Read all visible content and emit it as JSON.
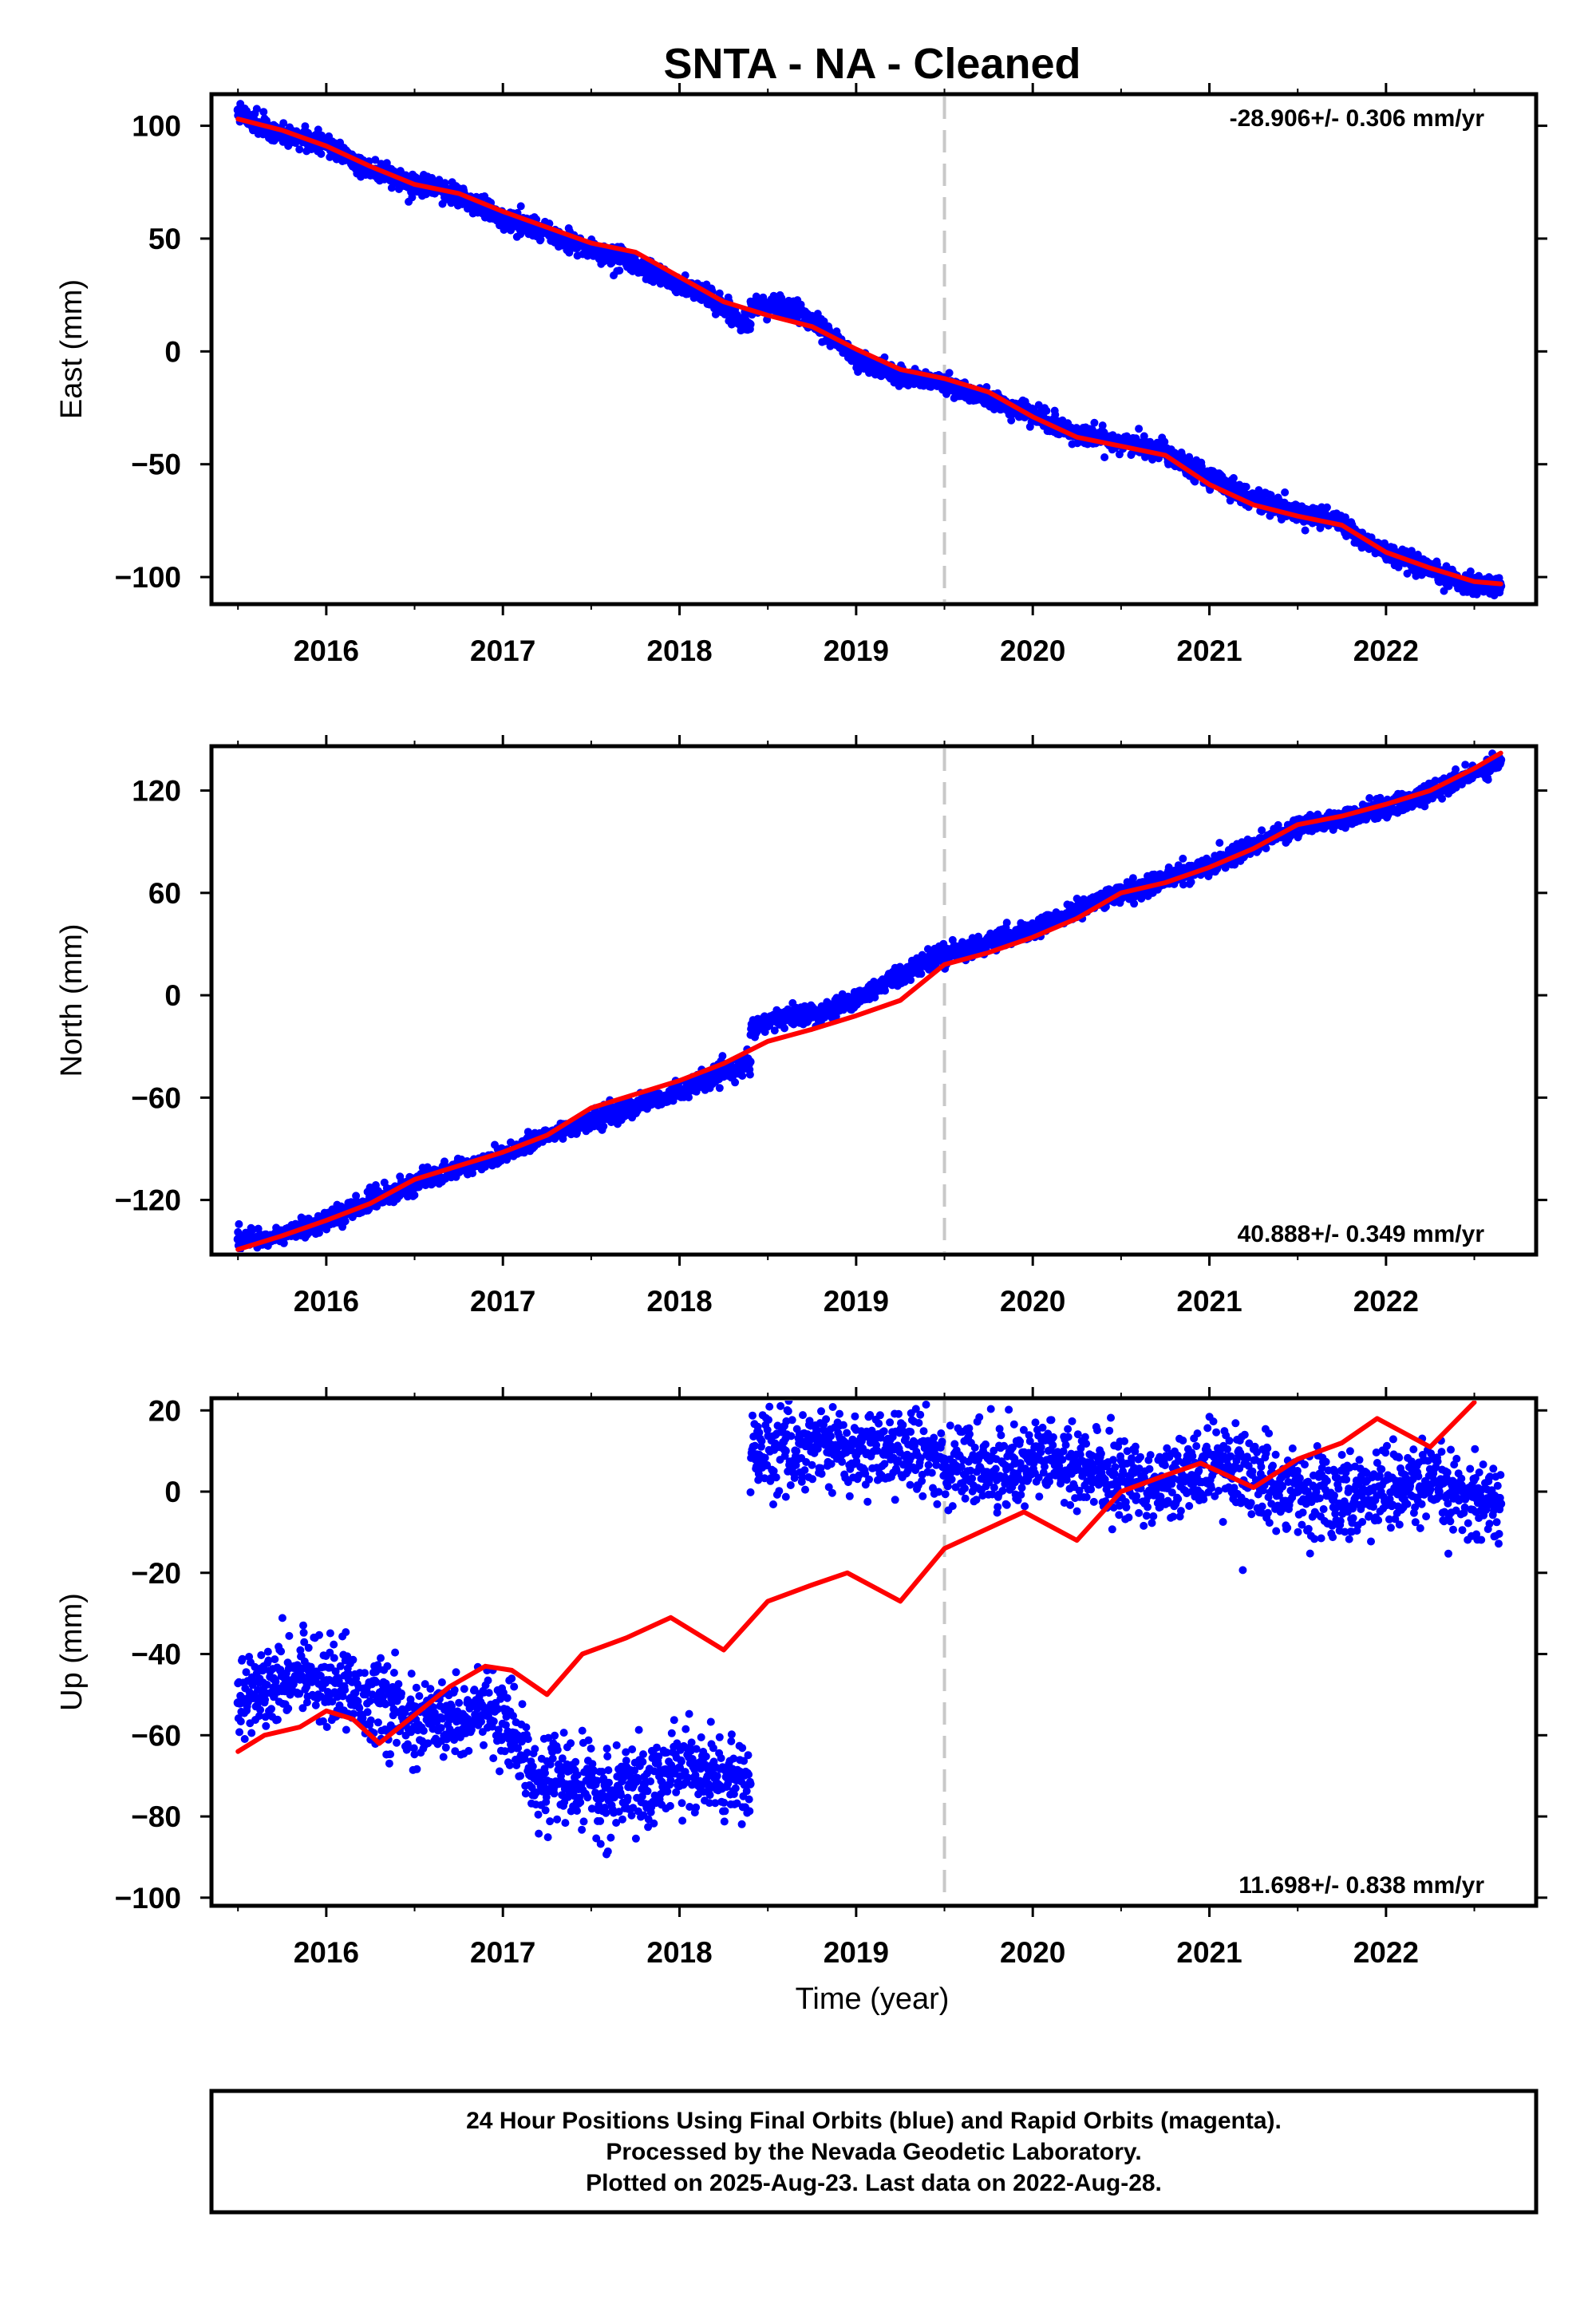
{
  "title": "SNTA  - NA - Cleaned",
  "x_axis_title": "Time (year)",
  "caption": [
    "24 Hour Positions Using Final Orbits (blue) and Rapid Orbits (magenta).",
    "Processed by the Nevada Geodetic Laboratory.",
    "Plotted on 2025-Aug-23. Last data on 2022-Aug-28."
  ],
  "colors": {
    "data_points": "#0000ff",
    "model_curve": "#ff0000",
    "event_line": "#c8c8c8"
  },
  "chart_data": [
    {
      "type": "scatter",
      "ylabel": "East (mm)",
      "rate_label": "-28.906+/- 0.306 mm/yr",
      "rate_position": "top-right",
      "xlim": [
        2015.35,
        2022.85
      ],
      "ylim": [
        -112,
        114
      ],
      "xticks": [
        2016,
        2017,
        2018,
        2019,
        2020,
        2021,
        2022
      ],
      "yticks": [
        100,
        50,
        0,
        -50,
        -100
      ],
      "event_line_x": 2019.5,
      "grid": false,
      "series": [
        {
          "kind": "points",
          "x": [
            2015.5,
            2015.6,
            2015.75,
            2016.0,
            2016.25,
            2016.5,
            2016.65,
            2016.8,
            2017.0,
            2017.25,
            2017.5,
            2017.7,
            2017.9,
            2018.15,
            2018.3,
            2018.4,
            2018.45,
            2018.6,
            2018.8,
            2019.0,
            2019.25,
            2019.5,
            2019.75,
            2020.0,
            2020.25,
            2020.5,
            2020.75,
            2021.0,
            2021.25,
            2021.5,
            2021.7,
            2021.9,
            2022.1,
            2022.3,
            2022.5,
            2022.65
          ],
          "y": [
            107,
            101,
            96,
            92,
            80,
            74,
            72,
            67,
            59,
            53,
            45,
            40,
            33,
            25,
            17,
            12,
            20,
            20,
            12,
            -4,
            -11,
            -14,
            -22,
            -28,
            -37,
            -40,
            -44,
            -56,
            -65,
            -72,
            -74,
            -85,
            -93,
            -99,
            -103,
            -104
          ]
        },
        {
          "kind": "model",
          "x": [
            2015.5,
            2015.75,
            2016.0,
            2016.25,
            2016.5,
            2016.75,
            2017.0,
            2017.25,
            2017.5,
            2017.75,
            2018.0,
            2018.25,
            2018.5,
            2018.75,
            2019.0,
            2019.25,
            2019.5,
            2019.75,
            2020.0,
            2020.25,
            2020.5,
            2020.75,
            2021.0,
            2021.25,
            2021.5,
            2021.75,
            2022.0,
            2022.25,
            2022.5,
            2022.65
          ],
          "y": [
            103,
            98,
            91,
            82,
            74,
            70,
            62,
            55,
            48,
            44,
            33,
            22,
            16,
            11,
            1,
            -8,
            -12,
            -18,
            -29,
            -38,
            -42,
            -46,
            -59,
            -68,
            -73,
            -77,
            -89,
            -96,
            -102,
            -103
          ]
        }
      ]
    },
    {
      "type": "scatter",
      "ylabel": "North (mm)",
      "rate_label": "40.888+/- 0.349 mm/yr",
      "rate_position": "bottom-right",
      "xlim": [
        2015.35,
        2022.85
      ],
      "ylim": [
        -152,
        146
      ],
      "xticks": [
        2016,
        2017,
        2018,
        2019,
        2020,
        2021,
        2022
      ],
      "yticks": [
        120,
        60,
        0,
        -60,
        -120
      ],
      "event_line_x": 2019.5,
      "grid": false,
      "series": [
        {
          "kind": "points",
          "x": [
            2015.5,
            2015.7,
            2015.9,
            2016.1,
            2016.3,
            2016.5,
            2016.7,
            2016.9,
            2017.1,
            2017.3,
            2017.5,
            2017.7,
            2017.9,
            2018.1,
            2018.3,
            2018.4,
            2018.42,
            2018.6,
            2018.8,
            2019.0,
            2019.25,
            2019.5,
            2019.75,
            2020.0,
            2020.25,
            2020.5,
            2020.75,
            2021.0,
            2021.25,
            2021.5,
            2021.75,
            2022.0,
            2022.25,
            2022.5,
            2022.65
          ],
          "y": [
            -143,
            -142,
            -136,
            -128,
            -118,
            -110,
            -103,
            -97,
            -89,
            -80,
            -74,
            -66,
            -60,
            -52,
            -44,
            -39,
            -20,
            -12,
            -10,
            -2,
            12,
            25,
            30,
            38,
            50,
            60,
            68,
            76,
            88,
            99,
            104,
            110,
            118,
            130,
            138
          ]
        },
        {
          "kind": "model",
          "x": [
            2015.5,
            2015.75,
            2016.0,
            2016.25,
            2016.5,
            2016.75,
            2017.0,
            2017.25,
            2017.5,
            2017.75,
            2018.0,
            2018.25,
            2018.5,
            2018.75,
            2019.0,
            2019.25,
            2019.5,
            2019.75,
            2020.0,
            2020.25,
            2020.5,
            2020.75,
            2021.0,
            2021.25,
            2021.5,
            2021.75,
            2022.0,
            2022.25,
            2022.5,
            2022.65
          ],
          "y": [
            -149,
            -141,
            -132,
            -122,
            -108,
            -100,
            -92,
            -82,
            -66,
            -58,
            -50,
            -40,
            -27,
            -20,
            -12,
            -3,
            18,
            25,
            34,
            45,
            60,
            66,
            75,
            86,
            100,
            105,
            112,
            120,
            133,
            142
          ]
        }
      ]
    },
    {
      "type": "scatter",
      "ylabel": "Up (mm)",
      "rate_label": "11.698+/- 0.838 mm/yr",
      "rate_position": "bottom-right",
      "xlim": [
        2015.35,
        2022.85
      ],
      "ylim": [
        -102,
        23
      ],
      "xticks": [
        2016,
        2017,
        2018,
        2019,
        2020,
        2021,
        2022
      ],
      "yticks": [
        20,
        0,
        -20,
        -40,
        -60,
        -80,
        -100
      ],
      "event_line_x": 2019.5,
      "grid": false,
      "series": [
        {
          "kind": "points",
          "x": [
            2015.5,
            2015.7,
            2015.9,
            2016.1,
            2016.3,
            2016.5,
            2016.7,
            2016.9,
            2017.05,
            2017.2,
            2017.4,
            2017.6,
            2017.8,
            2018.0,
            2018.2,
            2018.4,
            2018.45,
            2018.6,
            2018.8,
            2019.0,
            2019.2,
            2019.5,
            2019.7,
            2019.9,
            2020.1,
            2020.3,
            2020.5,
            2020.7,
            2020.9,
            2021.1,
            2021.3,
            2021.5,
            2021.7,
            2021.9,
            2022.1,
            2022.3,
            2022.5,
            2022.65
          ],
          "y": [
            -52,
            -46,
            -44,
            -48,
            -52,
            -58,
            -56,
            -54,
            -60,
            -70,
            -72,
            -76,
            -72,
            -68,
            -70,
            -72,
            9,
            10,
            12,
            9,
            11,
            8,
            6,
            7,
            8,
            5,
            3,
            2,
            4,
            6,
            3,
            0,
            -2,
            0,
            2,
            0,
            -1,
            -3
          ]
        },
        {
          "kind": "model",
          "x": [
            2015.5,
            2015.65,
            2015.85,
            2016.0,
            2016.15,
            2016.3,
            2016.5,
            2016.7,
            2016.9,
            2017.05,
            2017.25,
            2017.45,
            2017.7,
            2017.95,
            2018.25,
            2018.5,
            2018.75,
            2018.95,
            2019.25,
            2019.5,
            2019.75,
            2019.95,
            2020.25,
            2020.5,
            2020.75,
            2020.95,
            2021.25,
            2021.5,
            2021.75,
            2021.95,
            2022.25,
            2022.5
          ],
          "y": [
            -64,
            -60,
            -58,
            -54,
            -56,
            -62,
            -55,
            -48,
            -43,
            -44,
            -50,
            -40,
            -36,
            -31,
            -39,
            -27,
            -23,
            -20,
            -27,
            -14,
            -9,
            -5,
            -12,
            0,
            4,
            7,
            1,
            8,
            12,
            18,
            11,
            22
          ]
        }
      ]
    }
  ]
}
